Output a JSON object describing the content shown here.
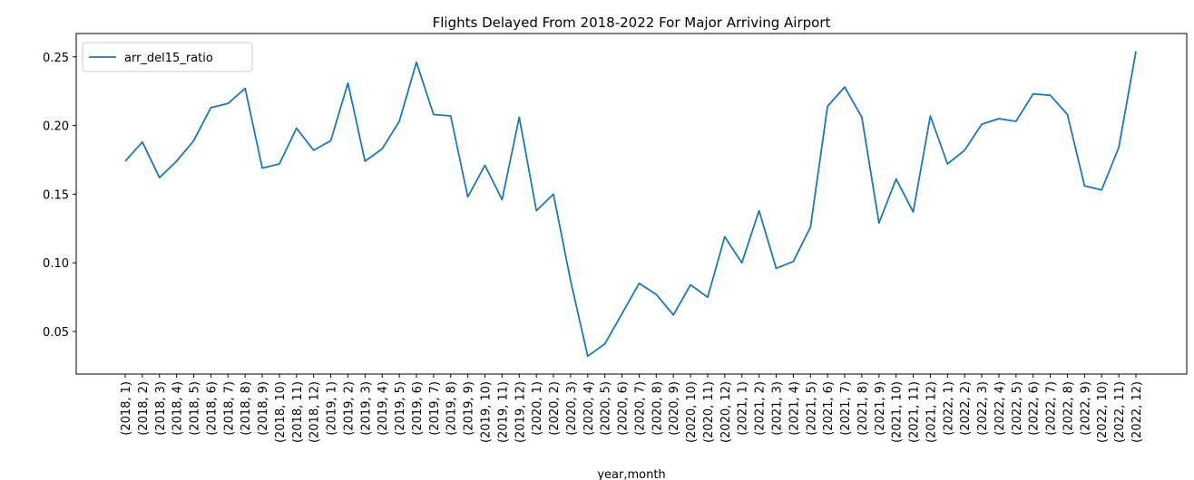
{
  "chart_data": {
    "type": "line",
    "title": "Flights Delayed From 2018-2022 For Major Arriving Airport",
    "xlabel": "year,month",
    "ylabel": "",
    "ylim": [
      0.019,
      0.267
    ],
    "yticks": [
      0.05,
      0.1,
      0.15,
      0.2,
      0.25
    ],
    "ytick_labels": [
      "0.05",
      "0.10",
      "0.15",
      "0.20",
      "0.25"
    ],
    "grid": false,
    "legend_position": "top-left",
    "categories": [
      "(2018, 1)",
      "(2018, 2)",
      "(2018, 3)",
      "(2018, 4)",
      "(2018, 5)",
      "(2018, 6)",
      "(2018, 7)",
      "(2018, 8)",
      "(2018, 9)",
      "(2018, 10)",
      "(2018, 11)",
      "(2018, 12)",
      "(2019, 1)",
      "(2019, 2)",
      "(2019, 3)",
      "(2019, 4)",
      "(2019, 5)",
      "(2019, 6)",
      "(2019, 7)",
      "(2019, 8)",
      "(2019, 9)",
      "(2019, 10)",
      "(2019, 11)",
      "(2019, 12)",
      "(2020, 1)",
      "(2020, 2)",
      "(2020, 3)",
      "(2020, 4)",
      "(2020, 5)",
      "(2020, 6)",
      "(2020, 7)",
      "(2020, 8)",
      "(2020, 9)",
      "(2020, 10)",
      "(2020, 11)",
      "(2020, 12)",
      "(2021, 1)",
      "(2021, 2)",
      "(2021, 3)",
      "(2021, 4)",
      "(2021, 5)",
      "(2021, 6)",
      "(2021, 7)",
      "(2021, 8)",
      "(2021, 9)",
      "(2021, 10)",
      "(2021, 11)",
      "(2021, 12)",
      "(2022, 1)",
      "(2022, 2)",
      "(2022, 3)",
      "(2022, 4)",
      "(2022, 5)",
      "(2022, 6)",
      "(2022, 7)",
      "(2022, 8)",
      "(2022, 9)",
      "(2022, 10)",
      "(2022, 11)",
      "(2022, 12)"
    ],
    "series": [
      {
        "name": "arr_del15_ratio",
        "color": "#1f77b4",
        "values": [
          0.174,
          0.188,
          0.162,
          0.174,
          0.189,
          0.213,
          0.216,
          0.227,
          0.169,
          0.172,
          0.198,
          0.182,
          0.189,
          0.231,
          0.174,
          0.183,
          0.203,
          0.246,
          0.208,
          0.207,
          0.148,
          0.171,
          0.146,
          0.206,
          0.138,
          0.15,
          0.087,
          0.032,
          0.041,
          0.063,
          0.085,
          0.077,
          0.062,
          0.084,
          0.075,
          0.119,
          0.1,
          0.138,
          0.096,
          0.101,
          0.126,
          0.214,
          0.228,
          0.206,
          0.129,
          0.161,
          0.137,
          0.207,
          0.172,
          0.182,
          0.201,
          0.205,
          0.203,
          0.223,
          0.222,
          0.208,
          0.156,
          0.153,
          0.184,
          0.254
        ]
      }
    ]
  }
}
